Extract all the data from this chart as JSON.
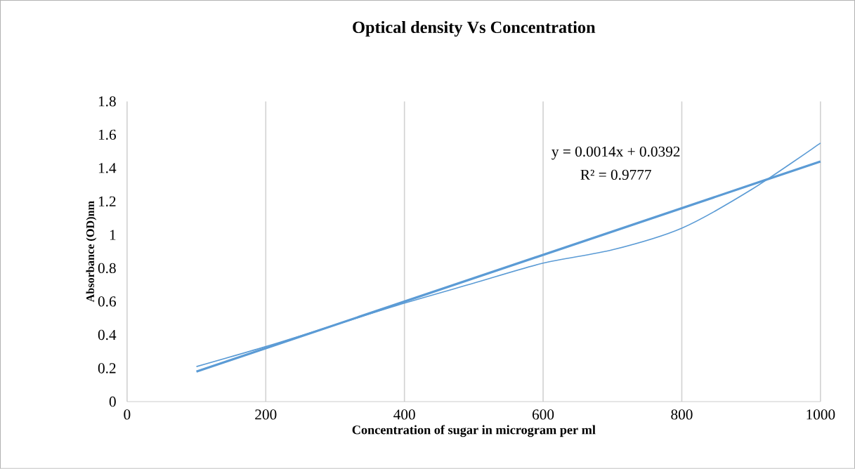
{
  "chart_data": {
    "type": "line",
    "title": "Optical density Vs Concentration",
    "xlabel": "Concentration of  sugar in microgram per ml",
    "ylabel": "Absorbance (OD)nm",
    "xlim": [
      0,
      1000
    ],
    "xticks": [
      0,
      200,
      400,
      600,
      800,
      1000
    ],
    "ylim": [
      0,
      1.8
    ],
    "yticks": [
      0,
      0.2,
      0.4,
      0.6,
      0.8,
      1,
      1.2,
      1.4,
      1.6,
      1.8
    ],
    "grid": "x",
    "series": [
      {
        "color": "#5b9bd5",
        "x": [
          100,
          200,
          300,
          400,
          500,
          600,
          700,
          800,
          900,
          1000
        ],
        "values": [
          0.21,
          0.33,
          0.46,
          0.59,
          0.71,
          0.83,
          0.91,
          1.04,
          1.27,
          1.55
        ]
      },
      {
        "color": "#5b9bd5",
        "x": [
          100,
          1000
        ],
        "values": [
          0.18,
          1.44
        ]
      }
    ],
    "annotations": [
      "y = 0.0014x + 0.0392",
      "R² = 0.9777"
    ]
  }
}
